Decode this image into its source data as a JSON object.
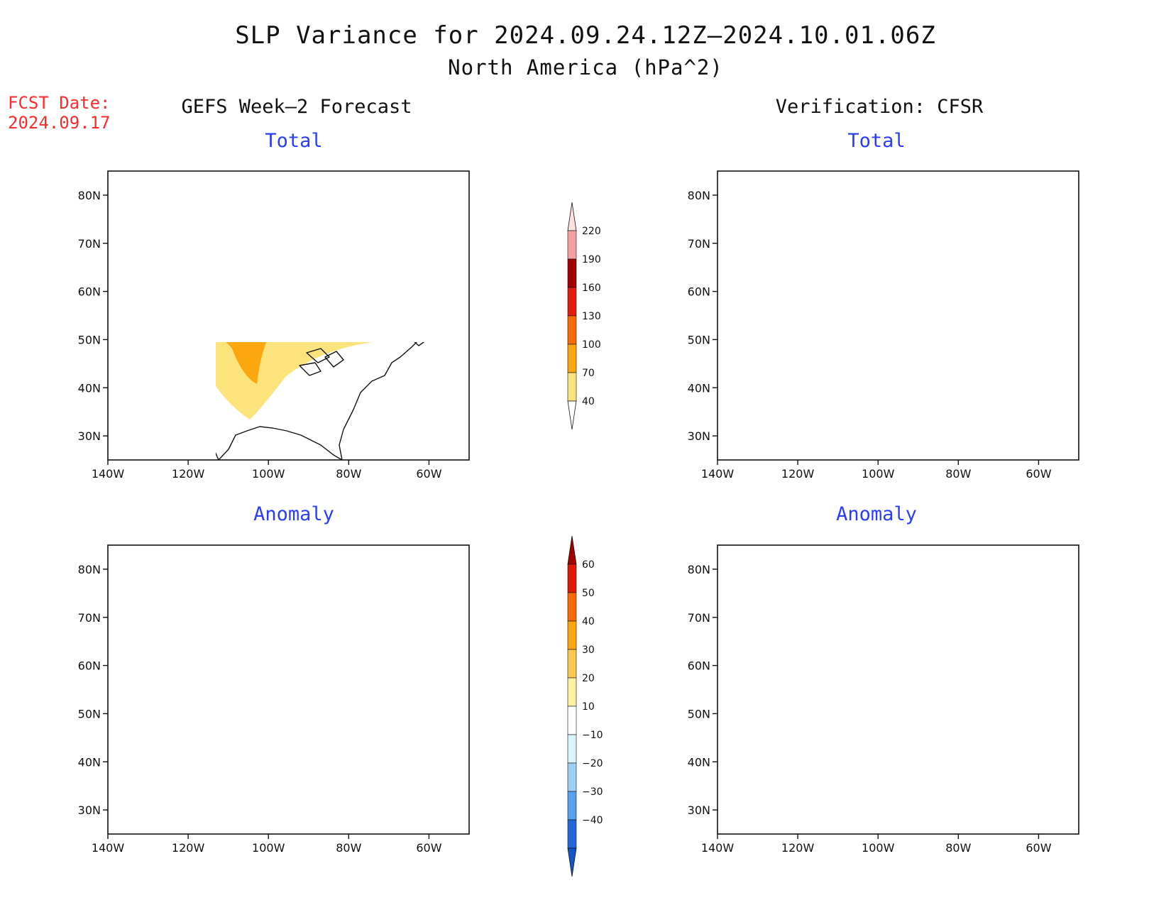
{
  "title": "SLP Variance for 2024.09.24.12Z–2024.10.01.06Z",
  "subtitle": "North America (hPa^2)",
  "fcst_label": "FCST Date:",
  "fcst_date": "2024.09.17",
  "columns": {
    "left": "GEFS Week–2 Forecast",
    "right": "Verification: CFSR"
  },
  "chart_data": {
    "type": "heatmap",
    "lat_ticks": [
      "80N",
      "70N",
      "60N",
      "50N",
      "40N",
      "30N"
    ],
    "lon_ticks": [
      "140W",
      "120W",
      "100W",
      "80W",
      "60W"
    ],
    "lat_range": [
      25,
      85
    ],
    "lon_range": [
      -140,
      -50
    ],
    "panels": [
      {
        "id": "forecast-total",
        "title": "Total",
        "column": "GEFS Week–2 Forecast",
        "scale": "total"
      },
      {
        "id": "verification-total",
        "title": "Total",
        "column": "Verification: CFSR",
        "scale": "total"
      },
      {
        "id": "forecast-anomaly",
        "title": "Anomaly",
        "column": "GEFS Week–2 Forecast",
        "scale": "anomaly"
      },
      {
        "id": "verification-anomaly",
        "title": "Anomaly",
        "column": "Verification: CFSR",
        "scale": "anomaly"
      }
    ],
    "colorbars": {
      "total": {
        "levels": [
          "40",
          "70",
          "100",
          "130",
          "160",
          "190",
          "220"
        ],
        "colors": [
          "#fce37c",
          "#fca610",
          "#fc6a08",
          "#e31a0e",
          "#a40000",
          "#f4a0a0",
          "#fde0e0"
        ]
      },
      "anomaly": {
        "levels": [
          "60",
          "50",
          "40",
          "30",
          "20",
          "10",
          "−10",
          "−20",
          "−30",
          "−40"
        ],
        "colors": [
          "#a40000",
          "#e01808",
          "#fc6a08",
          "#fca610",
          "#fcc850",
          "#fdf0a0",
          "#ffffff",
          "#d8f4fd",
          "#9cd0f8",
          "#56a0f0",
          "#2466d8",
          "#1456c8"
        ]
      }
    }
  }
}
